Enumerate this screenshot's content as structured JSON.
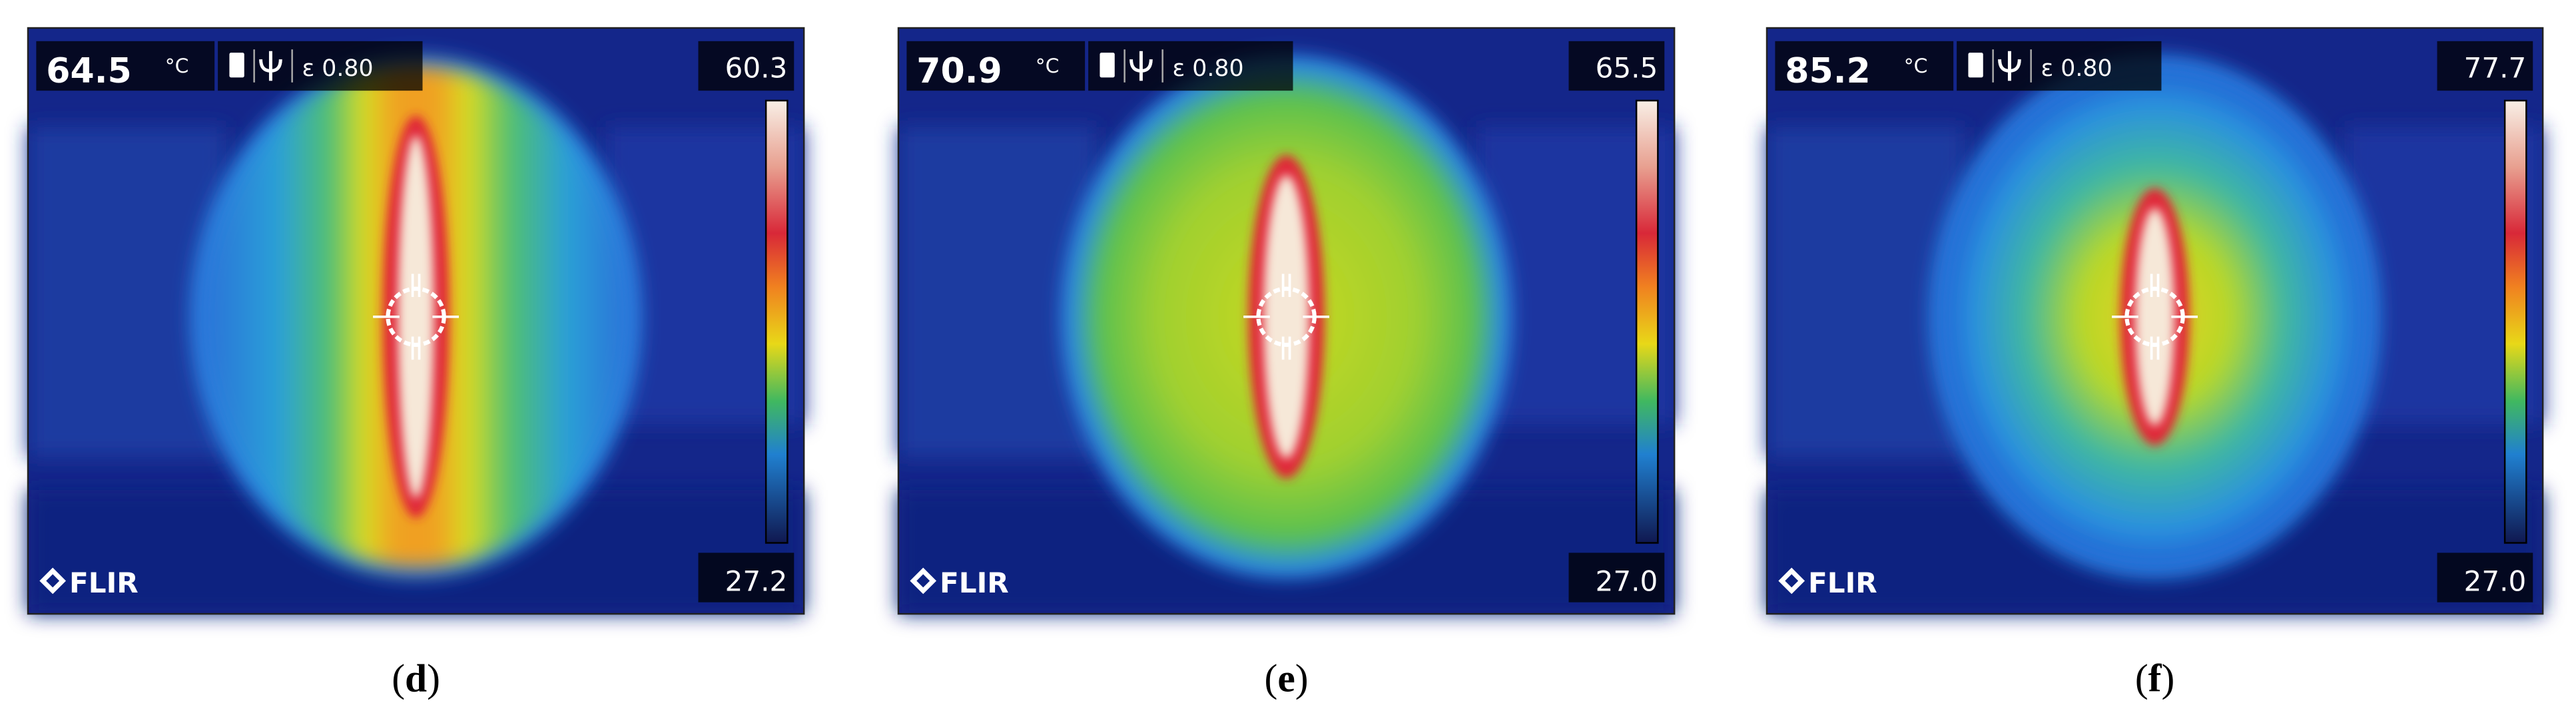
{
  "panels": [
    {
      "spot_temp": "64.5",
      "unit": "°C",
      "emissivity": "ε 0.80",
      "scale_max": "60.3",
      "scale_min": "27.2",
      "logo": "FLIR",
      "caption": [
        "(",
        "d",
        ")"
      ]
    },
    {
      "spot_temp": "70.9",
      "unit": "°C",
      "emissivity": "ε 0.80",
      "scale_max": "65.5",
      "scale_min": "27.0",
      "logo": "FLIR",
      "caption": [
        "(",
        "e",
        ")"
      ]
    },
    {
      "spot_temp": "85.2",
      "unit": "°C",
      "emissivity": "ε 0.80",
      "scale_max": "77.7",
      "scale_min": "27.0",
      "logo": "FLIR",
      "caption": [
        "(",
        "f",
        ")"
      ]
    }
  ]
}
